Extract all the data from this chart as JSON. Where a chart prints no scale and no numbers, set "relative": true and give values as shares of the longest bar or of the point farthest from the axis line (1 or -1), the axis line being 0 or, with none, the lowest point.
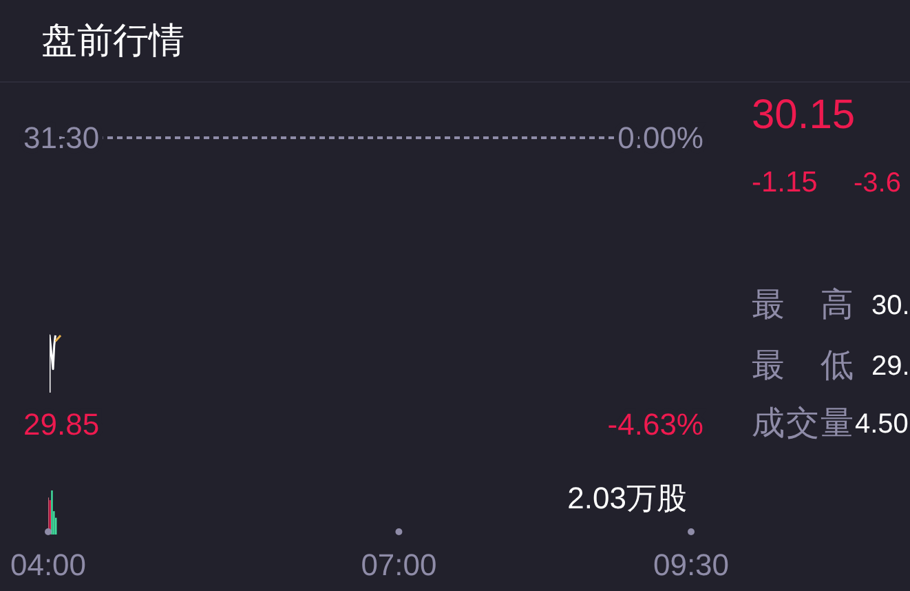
{
  "chart_data": [
    {
      "type": "line",
      "title": "盘前行情",
      "xlim": [
        4,
        9.5
      ],
      "ylim": [
        29.85,
        31.3
      ],
      "yticks": [
        {
          "value": 31.3,
          "label": "31.30"
        },
        {
          "value": 29.85,
          "label": "29.85"
        }
      ],
      "y2lim": [
        -4.63,
        0
      ],
      "y2ticks": [
        {
          "value": 0,
          "label": "0.00%"
        },
        {
          "value": -4.63,
          "label": "-4.63%"
        }
      ],
      "series": [
        {
          "color": "#ffffff",
          "x": [
            4,
            4,
            4.03,
            4.04,
            4.05
          ],
          "values": [
            30.01,
            30.3,
            30.13,
            30.25,
            30.3
          ]
        },
        {
          "color": "#e6b04a",
          "x": [
            4.05,
            4.095
          ],
          "values": [
            30.27,
            30.3
          ]
        }
      ],
      "ref_lines": [
        {
          "axis": "y",
          "value": 31.3,
          "color": "#8f8ca8",
          "line_style": "dashed"
        }
      ],
      "tick_labels": "y"
    },
    {
      "type": "bar",
      "relative": true,
      "xlim": [
        4,
        9.5
      ],
      "xticks": [
        {
          "value": 4,
          "label": "04:00"
        },
        {
          "value": 7,
          "label": "07:00"
        },
        {
          "value": 9.5,
          "label": "09:30"
        }
      ],
      "x": [
        4,
        4.017,
        4.033,
        4.05,
        4.067
      ],
      "values": [
        0.84,
        0.78,
        1,
        0.53,
        0.38
      ],
      "colors": [
        "#c9677a",
        "#e8174a",
        "#41e0a0",
        "#41e0a0",
        "#41e0a0"
      ],
      "annotations": [
        "2.03万股"
      ],
      "tick_labels": "x"
    },
    {
      "type": "other",
      "annotations": [
        "30.15",
        "-1.15",
        "-3.6",
        "最高",
        "30.",
        "最低",
        "29.",
        "成交量",
        "4.50"
      ]
    }
  ]
}
